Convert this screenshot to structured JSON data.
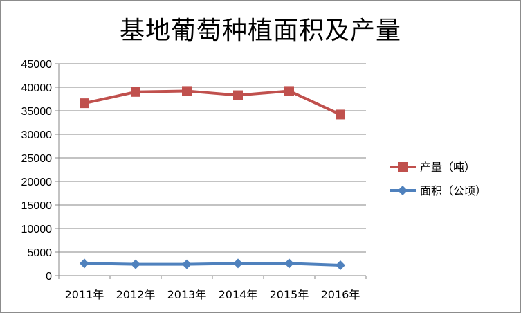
{
  "chart_data": {
    "type": "line",
    "title": "基地葡萄种植面积及产量",
    "categories": [
      "2011年",
      "2012年",
      "2013年",
      "2014年",
      "2015年",
      "2016年"
    ],
    "series": [
      {
        "name": "产量（吨）",
        "values": [
          36600,
          39000,
          39200,
          38300,
          39200,
          34200
        ],
        "color": "#c0504d",
        "marker": "square"
      },
      {
        "name": "面积（公顷）",
        "values": [
          2600,
          2400,
          2400,
          2600,
          2600,
          2200
        ],
        "color": "#4f81bd",
        "marker": "diamond"
      }
    ],
    "ylim": [
      0,
      45000
    ],
    "yticks": [
      "0",
      "5000",
      "10000",
      "15000",
      "20000",
      "25000",
      "30000",
      "35000",
      "40000",
      "45000"
    ],
    "grid": true,
    "legend": "right"
  }
}
